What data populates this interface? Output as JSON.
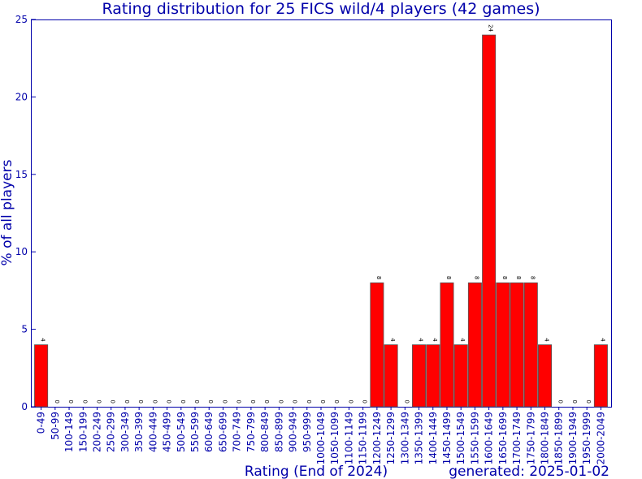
{
  "chart_data": {
    "type": "bar",
    "title": "Rating distribution for 25 FICS wild/4 players (42 games)",
    "xlabel": "Rating (End of 2024)",
    "ylabel": "% of all players",
    "footer": "generated: 2025-01-02",
    "ylim": [
      0,
      25
    ],
    "yticks": [
      0,
      5,
      10,
      15,
      20,
      25
    ],
    "categories": [
      "0-49",
      "50-99",
      "100-149",
      "150-199",
      "200-249",
      "250-299",
      "300-349",
      "350-399",
      "400-449",
      "450-499",
      "500-549",
      "550-599",
      "600-649",
      "650-699",
      "700-749",
      "750-799",
      "800-849",
      "850-899",
      "900-949",
      "950-999",
      "1000-1049",
      "1050-1099",
      "1100-1149",
      "1150-1199",
      "1200-1249",
      "1250-1299",
      "1300-1349",
      "1350-1399",
      "1400-1449",
      "1450-1499",
      "1500-1549",
      "1550-1599",
      "1600-1649",
      "1650-1699",
      "1700-1749",
      "1750-1799",
      "1800-1849",
      "1850-1899",
      "1900-1949",
      "1950-1999",
      "2000-2049"
    ],
    "values": [
      4,
      0,
      0,
      0,
      0,
      0,
      0,
      0,
      0,
      0,
      0,
      0,
      0,
      0,
      0,
      0,
      0,
      0,
      0,
      0,
      0,
      0,
      0,
      0,
      8,
      4,
      0,
      4,
      4,
      8,
      4,
      8,
      24,
      8,
      8,
      8,
      4,
      0,
      0,
      0,
      4
    ],
    "bar_color": "#ff0000",
    "text_color": "#0000aa",
    "grid": false,
    "legend": "none"
  }
}
